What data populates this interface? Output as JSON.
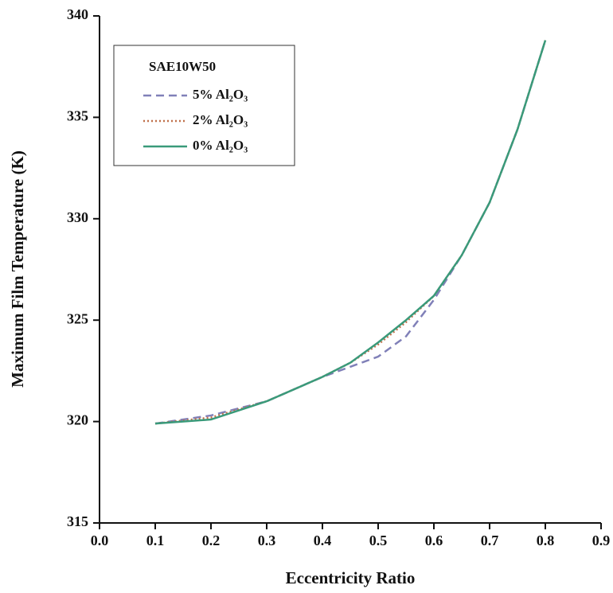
{
  "chart_data": {
    "type": "line",
    "x_label": "Eccentricity Ratio",
    "y_label": "Maximum Film Temperature (K)",
    "legend_title": "SAE10W50",
    "legend": "upper left",
    "x": [
      0.1,
      0.2,
      0.3,
      0.4,
      0.45,
      0.5,
      0.55,
      0.6,
      0.65,
      0.7,
      0.75,
      0.8
    ],
    "series": [
      {
        "name": "5% Al₂O₃",
        "color": "#8080b8",
        "style": "dashed",
        "values": [
          319.9,
          320.3,
          321.0,
          322.2,
          322.7,
          323.2,
          324.2,
          326.0,
          328.2,
          330.8,
          334.4,
          338.8
        ]
      },
      {
        "name": "2% Al₂O₃",
        "color": "#c0704a",
        "style": "dotted",
        "values": [
          319.9,
          320.2,
          321.0,
          322.2,
          322.9,
          323.8,
          324.9,
          326.2,
          328.2,
          330.8,
          334.4,
          338.8
        ]
      },
      {
        "name": "0% Al₂O₃",
        "color": "#3a9a7a",
        "style": "solid",
        "values": [
          319.9,
          320.1,
          321.0,
          322.2,
          322.9,
          323.9,
          325.0,
          326.2,
          328.2,
          330.8,
          334.4,
          338.8
        ]
      }
    ],
    "xlim": [
      0.0,
      0.9
    ],
    "xticks": [
      {
        "value": 0.0,
        "label": "0.0"
      },
      0.1,
      0.2,
      0.3,
      0.4,
      0.5,
      0.6,
      0.7,
      0.8,
      0.9
    ],
    "ylim": [
      315,
      340
    ],
    "yticks": [
      315,
      320,
      325,
      330,
      335,
      340
    ]
  }
}
